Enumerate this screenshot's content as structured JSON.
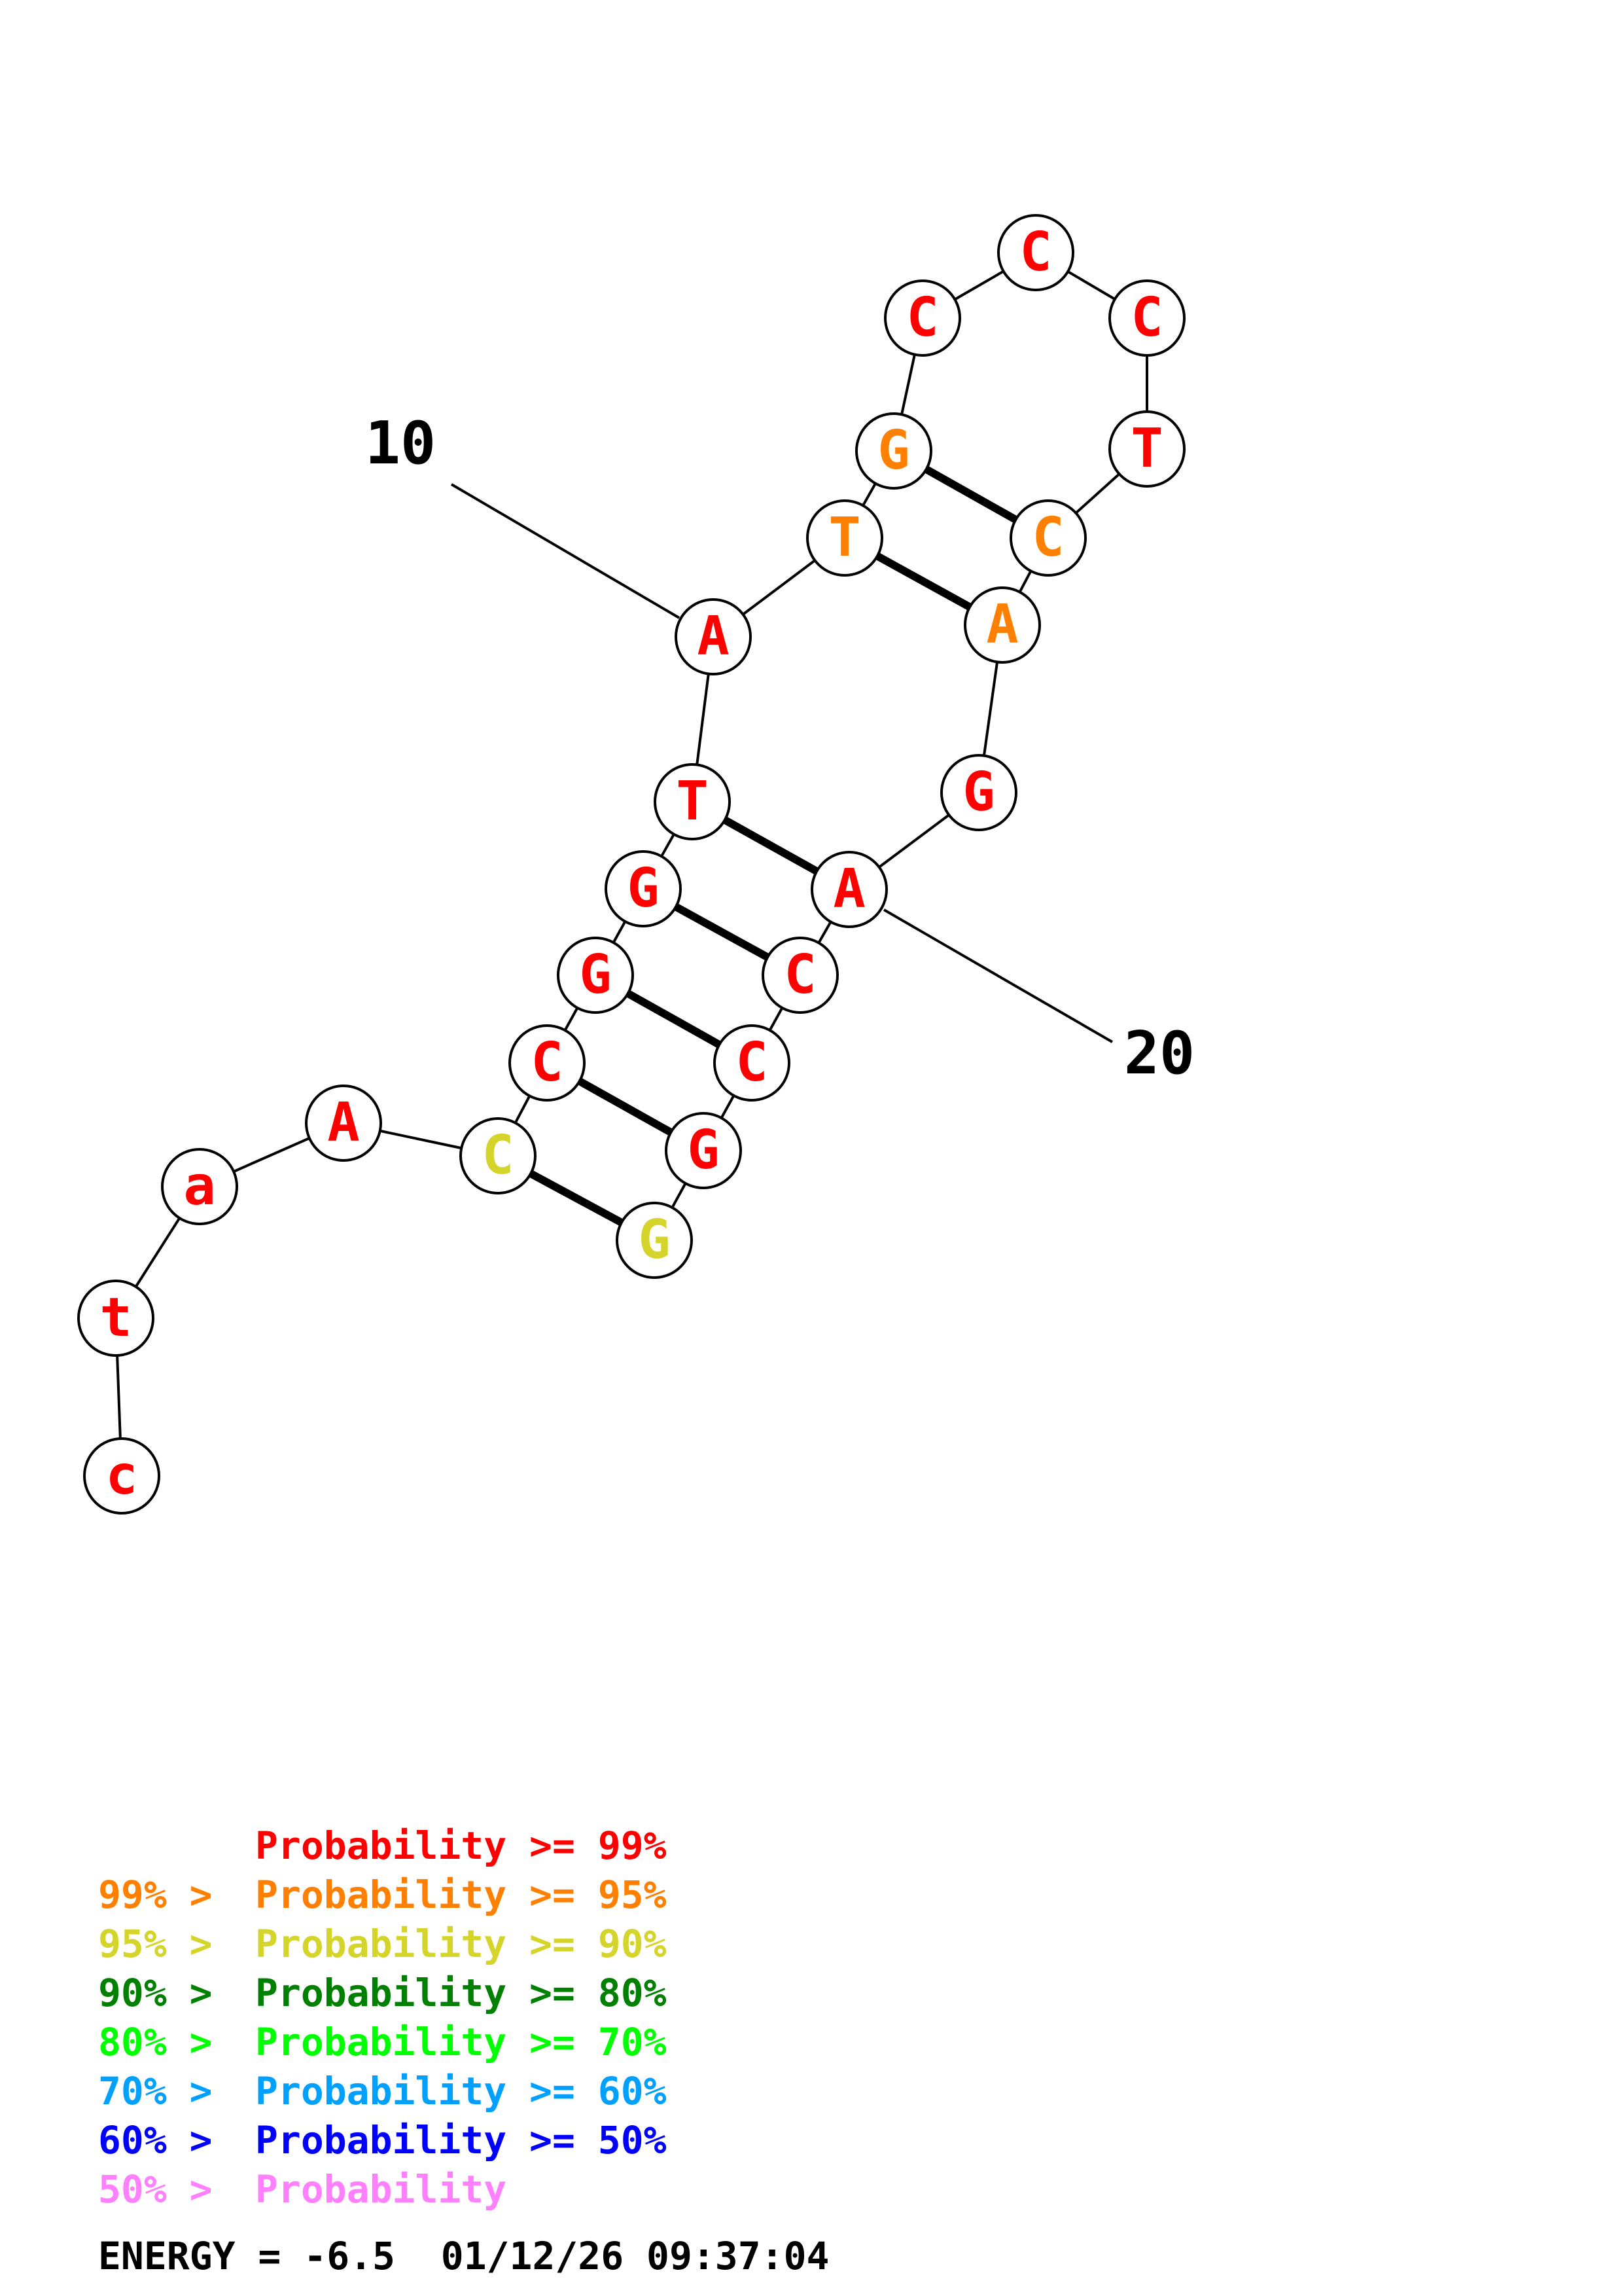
{
  "palette": {
    "p99": "#ff0000",
    "p95": "#ff8000",
    "p90": "#d4d42a",
    "p80": "#008000",
    "p70": "#00ff00",
    "p60": "#00a0ff",
    "p50": "#0000ff",
    "plow": "#ff80ff"
  },
  "nucleotides": [
    {
      "index": 1,
      "letter": "c",
      "prob": "p99"
    },
    {
      "index": 2,
      "letter": "t",
      "prob": "p99"
    },
    {
      "index": 3,
      "letter": "a",
      "prob": "p99"
    },
    {
      "index": 4,
      "letter": "A",
      "prob": "p99"
    },
    {
      "index": 5,
      "letter": "C",
      "prob": "p90"
    },
    {
      "index": 6,
      "letter": "C",
      "prob": "p99"
    },
    {
      "index": 7,
      "letter": "G",
      "prob": "p99"
    },
    {
      "index": 8,
      "letter": "G",
      "prob": "p99"
    },
    {
      "index": 9,
      "letter": "T",
      "prob": "p99"
    },
    {
      "index": 10,
      "letter": "A",
      "prob": "p99"
    },
    {
      "index": 11,
      "letter": "T",
      "prob": "p95"
    },
    {
      "index": 12,
      "letter": "G",
      "prob": "p95"
    },
    {
      "index": 13,
      "letter": "C",
      "prob": "p99"
    },
    {
      "index": 14,
      "letter": "C",
      "prob": "p99"
    },
    {
      "index": 15,
      "letter": "C",
      "prob": "p99"
    },
    {
      "index": 16,
      "letter": "T",
      "prob": "p99"
    },
    {
      "index": 17,
      "letter": "C",
      "prob": "p95"
    },
    {
      "index": 18,
      "letter": "A",
      "prob": "p95"
    },
    {
      "index": 19,
      "letter": "G",
      "prob": "p99"
    },
    {
      "index": 20,
      "letter": "A",
      "prob": "p99"
    },
    {
      "index": 21,
      "letter": "C",
      "prob": "p99"
    },
    {
      "index": 22,
      "letter": "C",
      "prob": "p99"
    },
    {
      "index": 23,
      "letter": "G",
      "prob": "p99"
    },
    {
      "index": 24,
      "letter": "G",
      "prob": "p90"
    }
  ],
  "pairs": [
    [
      5,
      24
    ],
    [
      6,
      23
    ],
    [
      7,
      22
    ],
    [
      8,
      21
    ],
    [
      9,
      20
    ],
    [
      11,
      18
    ],
    [
      12,
      17
    ]
  ],
  "tick_labels": [
    {
      "text": "10",
      "at": 10
    },
    {
      "text": "20",
      "at": 20
    }
  ],
  "legend": [
    {
      "prefix": "",
      "main": "Probability >= 99%",
      "prob": "p99"
    },
    {
      "prefix": "99% > ",
      "main": "Probability >= 95%",
      "prob": "p95"
    },
    {
      "prefix": "95% > ",
      "main": "Probability >= 90%",
      "prob": "p90"
    },
    {
      "prefix": "90% > ",
      "main": "Probability >= 80%",
      "prob": "p80"
    },
    {
      "prefix": "80% > ",
      "main": "Probability >= 70%",
      "prob": "p70"
    },
    {
      "prefix": "70% > ",
      "main": "Probability >= 60%",
      "prob": "p60"
    },
    {
      "prefix": "60% > ",
      "main": "Probability >= 50%",
      "prob": "p50"
    },
    {
      "prefix": "50% > ",
      "main": "Probability",
      "prob": "plow"
    }
  ],
  "energy": {
    "text": "ENERGY = -6.5  01/12/26 09:37:04"
  }
}
